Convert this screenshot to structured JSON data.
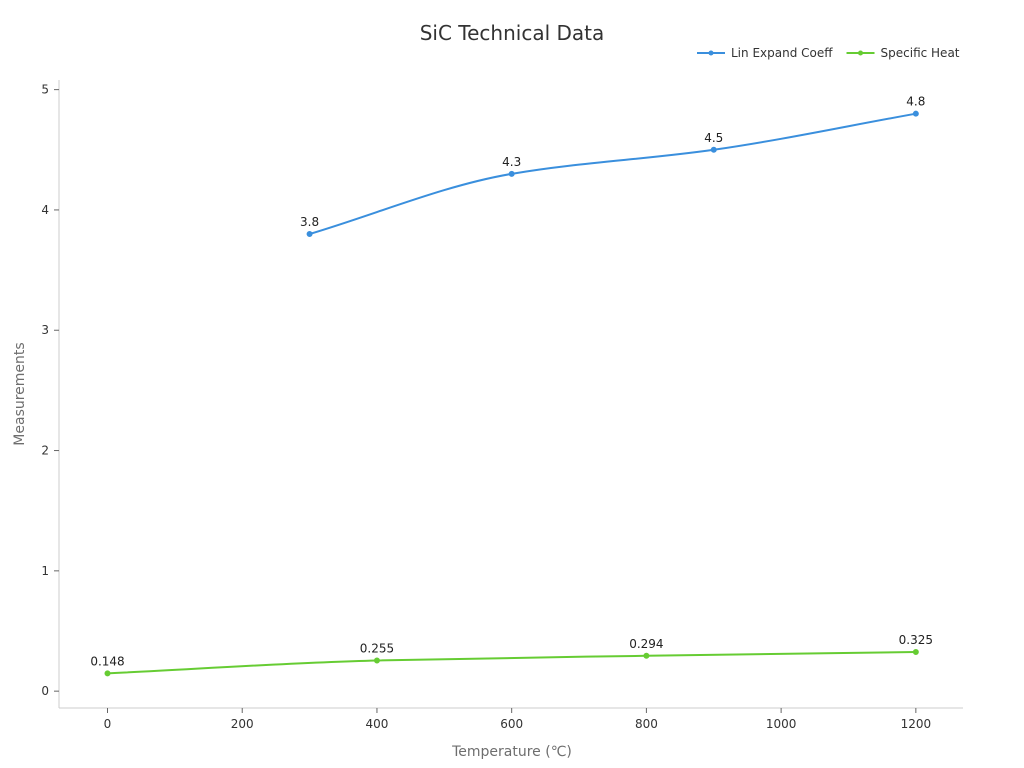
{
  "chart_data": {
    "type": "line",
    "title": "SiC Technical Data",
    "xlabel": "Temperature (℃)",
    "ylabel": "Measurements",
    "xlim": [
      -72,
      1270
    ],
    "ylim": [
      -0.14,
      5.08
    ],
    "x_ticks": [
      0,
      200,
      400,
      600,
      800,
      1000,
      1200
    ],
    "y_ticks": [
      0,
      1,
      2,
      3,
      4,
      5
    ],
    "grid": false,
    "legend_position": "top-right",
    "series": [
      {
        "name": "Lin Expand Coeff",
        "color": "#3a8fdd",
        "x": [
          300,
          600,
          900,
          1200
        ],
        "values": [
          3.8,
          4.3,
          4.5,
          4.8
        ],
        "labels": [
          "3.8",
          "4.3",
          "4.5",
          "4.8"
        ]
      },
      {
        "name": "Specific Heat",
        "color": "#66cc33",
        "x": [
          0,
          400,
          800,
          1200
        ],
        "values": [
          0.148,
          0.255,
          0.294,
          0.325
        ],
        "labels": [
          "0.148",
          "0.255",
          "0.294",
          "0.325"
        ]
      }
    ]
  }
}
